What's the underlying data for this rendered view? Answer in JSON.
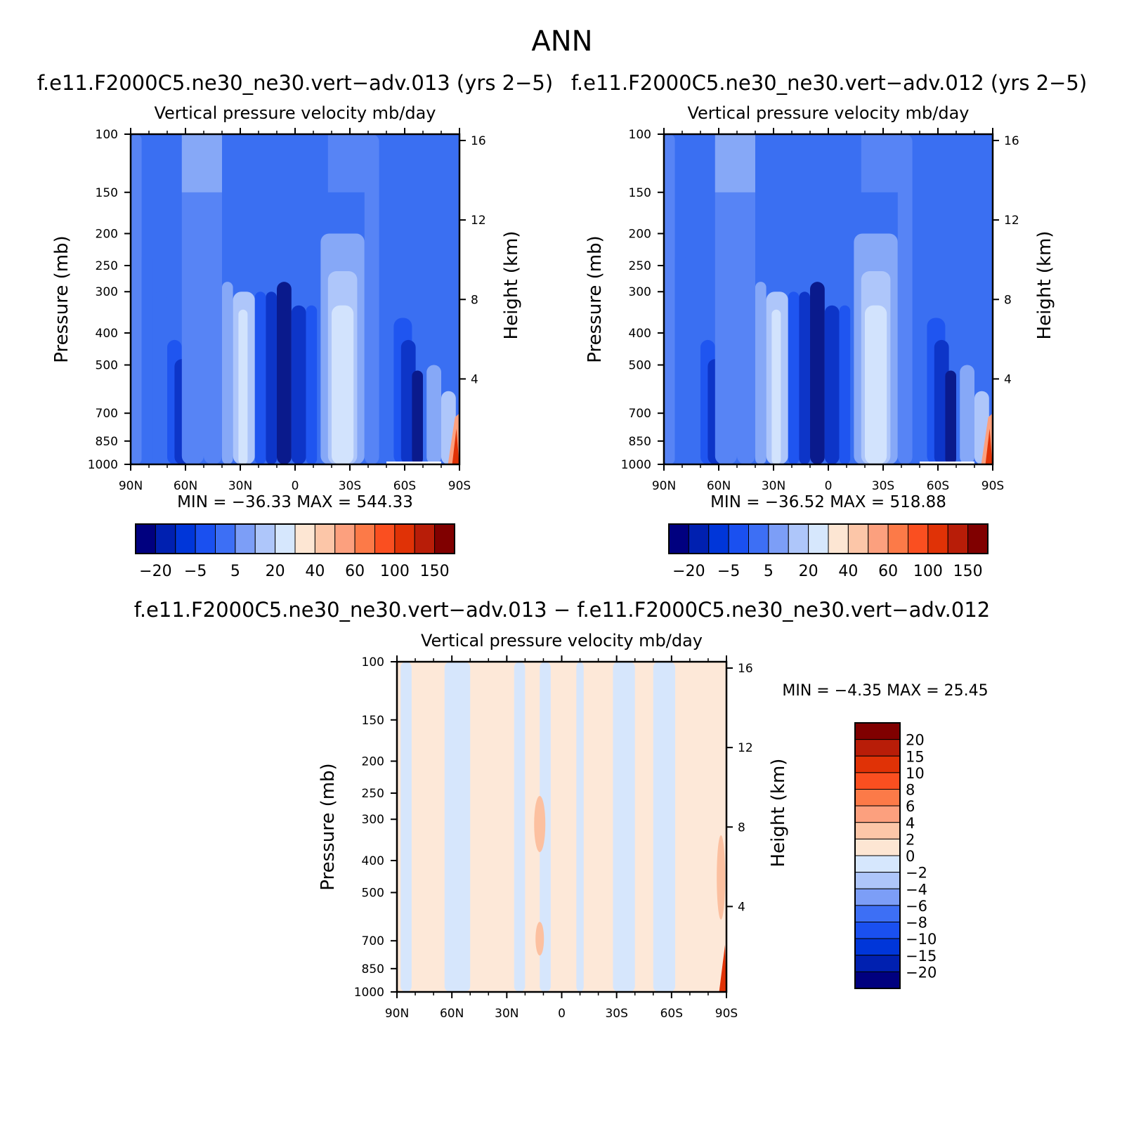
{
  "figure": {
    "title": "ANN"
  },
  "colors": {
    "blue_scale": [
      "#00007f",
      "#0020b0",
      "#0036d9",
      "#1a50f0",
      "#3d6ff5",
      "#7c9ef7",
      "#aec6fa",
      "#d6e7fd"
    ],
    "red_scale": [
      "#fde6d3",
      "#fcc6a8",
      "#fca07e",
      "#fc7a48",
      "#fa4f20",
      "#e03206",
      "#b81d08",
      "#800000"
    ],
    "field_blues": [
      "#0a1a8c",
      "#0d35c8",
      "#1f55f0",
      "#3a6ff2",
      "#5784f5",
      "#86a8f7",
      "#aec6fa",
      "#d2e3fd"
    ],
    "diff_cream": "#fde8d8",
    "diff_lightblue": "#d6e6fc",
    "diff_salmon": "#fcc0a0",
    "diff_red": "#e03206"
  },
  "chart_data": [
    {
      "type": "heatmap",
      "title": "f.e11.F2000C5.ne30_ne30.vert−adv.013 (yrs 2−5)",
      "subtitle": "Vertical pressure velocity   mb/day",
      "ylabel": "Pressure (mb)",
      "ylabel_right": "Height (km)",
      "x_ticks": [
        "90N",
        "60N",
        "30N",
        "0",
        "30S",
        "60S",
        "90S"
      ],
      "y_ticks": [
        "100",
        "150",
        "200",
        "250",
        "300",
        "400",
        "500",
        "700",
        "850",
        "1000"
      ],
      "y_ticks_right": [
        "16",
        "12",
        "8",
        "4"
      ],
      "ylim": [
        1000,
        100
      ],
      "xlim": [
        90,
        -90
      ],
      "stats": "MIN =  −36.33   MAX =  544.33",
      "colorbar": {
        "orientation": "horizontal",
        "labels": [
          "−20",
          "−5",
          "5",
          "20",
          "40",
          "60",
          "100",
          "150"
        ]
      }
    },
    {
      "type": "heatmap",
      "title": "f.e11.F2000C5.ne30_ne30.vert−adv.012 (yrs 2−5)",
      "subtitle": "Vertical pressure velocity   mb/day",
      "ylabel": "Pressure (mb)",
      "ylabel_right": "Height (km)",
      "x_ticks": [
        "90N",
        "60N",
        "30N",
        "0",
        "30S",
        "60S",
        "90S"
      ],
      "y_ticks": [
        "100",
        "150",
        "200",
        "250",
        "300",
        "400",
        "500",
        "700",
        "850",
        "1000"
      ],
      "y_ticks_right": [
        "16",
        "12",
        "8",
        "4"
      ],
      "ylim": [
        1000,
        100
      ],
      "xlim": [
        90,
        -90
      ],
      "stats": "MIN =  −36.52   MAX =  518.88",
      "colorbar": {
        "orientation": "horizontal",
        "labels": [
          "−20",
          "−5",
          "5",
          "20",
          "40",
          "60",
          "100",
          "150"
        ]
      }
    },
    {
      "type": "heatmap",
      "title": "f.e11.F2000C5.ne30_ne30.vert−adv.013 − f.e11.F2000C5.ne30_ne30.vert−adv.012",
      "subtitle": "Vertical pressure velocity   mb/day",
      "ylabel": "Pressure (mb)",
      "ylabel_right": "Height (km)",
      "x_ticks": [
        "90N",
        "60N",
        "30N",
        "0",
        "30S",
        "60S",
        "90S"
      ],
      "y_ticks": [
        "100",
        "150",
        "200",
        "250",
        "300",
        "400",
        "500",
        "700",
        "850",
        "1000"
      ],
      "y_ticks_right": [
        "16",
        "12",
        "8",
        "4"
      ],
      "ylim": [
        1000,
        100
      ],
      "xlim": [
        90,
        -90
      ],
      "stats": "MIN =   −4.35   MAX =   25.45",
      "colorbar": {
        "orientation": "vertical",
        "labels": [
          "20",
          "15",
          "10",
          "8",
          "6",
          "4",
          "2",
          "0",
          "−2",
          "−4",
          "−6",
          "−8",
          "−10",
          "−15",
          "−20"
        ]
      }
    }
  ]
}
